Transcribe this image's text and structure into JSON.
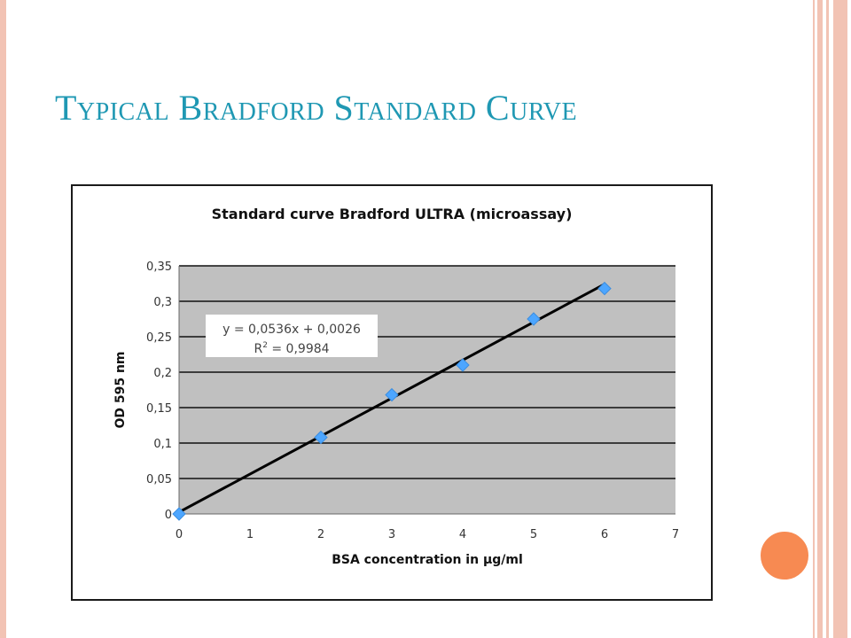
{
  "slide": {
    "title": "Typical Bradford Standard Curve"
  },
  "colors": {
    "title": "#1f98b3",
    "frame": "#f2c3b4",
    "orange_dot": "#f78a52",
    "plot_bg": "#c0c0c0",
    "data_point": "#4da6ff",
    "trendline": "#000000"
  },
  "chart_data": {
    "type": "scatter",
    "title": "Standard curve Bradford ULTRA (microassay)",
    "xlabel": "BSA concentration in µg/ml",
    "ylabel": "OD 595 nm",
    "xlim": [
      0,
      7
    ],
    "ylim": [
      0,
      0.35
    ],
    "x_ticks": [
      "0",
      "1",
      "2",
      "3",
      "4",
      "5",
      "6",
      "7"
    ],
    "y_ticks": [
      "0",
      "0,05",
      "0,1",
      "0,15",
      "0,2",
      "0,25",
      "0,3",
      "0,35"
    ],
    "grid": true,
    "series": [
      {
        "x": [
          0,
          2,
          3,
          4,
          5,
          6
        ],
        "y": [
          0,
          0.108,
          0.168,
          0.21,
          0.275,
          0.318
        ]
      }
    ],
    "trendline": {
      "slope": 0.0536,
      "intercept": 0.0026,
      "x_range": [
        0,
        6
      ],
      "equation": "y = 0,0536x + 0,0026",
      "r2_label": "R",
      "r2_exponent": "2",
      "r2_value": " = 0,9984"
    }
  }
}
